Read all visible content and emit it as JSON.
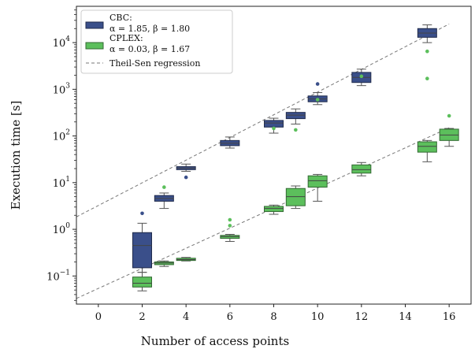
{
  "chart_data": {
    "type": "box",
    "xlabel": "Number of access points",
    "ylabel": "Execution time [s]",
    "yscale": "log",
    "xlim": [
      -1,
      17
    ],
    "ylim": [
      0.025,
      60000
    ],
    "xticks": [
      0,
      2,
      4,
      6,
      8,
      10,
      12,
      14,
      16
    ],
    "yticks": [
      {
        "value": 0.1,
        "base": "10",
        "exp": "−1"
      },
      {
        "value": 1,
        "base": "10",
        "exp": "0"
      },
      {
        "value": 10,
        "base": "10",
        "exp": "1"
      },
      {
        "value": 100,
        "base": "10",
        "exp": "2"
      },
      {
        "value": 1000,
        "base": "10",
        "exp": "3"
      },
      {
        "value": 10000,
        "base": "10",
        "exp": "4"
      }
    ],
    "grid": false,
    "legend": {
      "placement": "top-left",
      "entries": [
        {
          "line1": "CBC:",
          "line2": "α = 1.85, β = 1.80",
          "color": "#3a4f8a",
          "style": "box"
        },
        {
          "line1": "CPLEX:",
          "line2": "α = 0.03, β = 1.67",
          "color": "#5cbf5c",
          "style": "box"
        },
        {
          "line1": "Theil-Sen regression",
          "line2": "",
          "color": "#777777",
          "style": "dashed"
        }
      ]
    },
    "series": [
      {
        "name": "CBC",
        "color": "#3a4f8a",
        "boxes": [
          {
            "x": 2,
            "whislo": 0.12,
            "q1": 0.15,
            "med": 0.45,
            "q3": 0.85,
            "whishi": 1.35,
            "fliers": [
              2.2
            ]
          },
          {
            "x": 3,
            "whislo": 2.8,
            "q1": 4.0,
            "med": 4.6,
            "q3": 5.3,
            "whishi": 6.0,
            "fliers": []
          },
          {
            "x": 4,
            "whislo": 17.5,
            "q1": 19.0,
            "med": 20.5,
            "q3": 22.0,
            "whishi": 25.0,
            "fliers": [
              13.0
            ]
          },
          {
            "x": 6,
            "whislo": 55,
            "q1": 62,
            "med": 70,
            "q3": 80,
            "whishi": 95,
            "fliers": []
          },
          {
            "x": 8,
            "whislo": 115,
            "q1": 155,
            "med": 190,
            "q3": 215,
            "whishi": 240,
            "fliers": []
          },
          {
            "x": 9,
            "whislo": 180,
            "q1": 235,
            "med": 280,
            "q3": 320,
            "whishi": 380,
            "fliers": []
          },
          {
            "x": 10,
            "whislo": 470,
            "q1": 540,
            "med": 620,
            "q3": 720,
            "whishi": 850,
            "fliers": [
              1300
            ]
          },
          {
            "x": 12,
            "whislo": 1200,
            "q1": 1400,
            "med": 1800,
            "q3": 2300,
            "whishi": 2700,
            "fliers": []
          },
          {
            "x": 15,
            "whislo": 10000,
            "q1": 13000,
            "med": 16000,
            "q3": 20000,
            "whishi": 24000,
            "fliers": []
          }
        ],
        "regression": {
          "x": [
            -1,
            16
          ],
          "y": [
            1.85,
            25000
          ]
        }
      },
      {
        "name": "CPLEX",
        "color": "#5cbf5c",
        "boxes": [
          {
            "x": 2,
            "whislo": 0.048,
            "q1": 0.058,
            "med": 0.07,
            "q3": 0.095,
            "whishi": 0.12,
            "fliers": []
          },
          {
            "x": 3,
            "whislo": 0.16,
            "q1": 0.175,
            "med": 0.19,
            "q3": 0.2,
            "whishi": 0.21,
            "fliers": [
              8.0
            ]
          },
          {
            "x": 4,
            "whislo": 0.21,
            "q1": 0.215,
            "med": 0.225,
            "q3": 0.24,
            "whishi": 0.25,
            "fliers": []
          },
          {
            "x": 6,
            "whislo": 0.55,
            "q1": 0.64,
            "med": 0.7,
            "q3": 0.74,
            "whishi": 0.78,
            "fliers": [
              1.2,
              1.6
            ]
          },
          {
            "x": 8,
            "whislo": 2.1,
            "q1": 2.4,
            "med": 2.8,
            "q3": 3.1,
            "whishi": 3.3,
            "fliers": [
              145
            ]
          },
          {
            "x": 9,
            "whislo": 2.8,
            "q1": 3.2,
            "med": 5.0,
            "q3": 7.5,
            "whishi": 8.5,
            "fliers": [
              135
            ]
          },
          {
            "x": 10,
            "whislo": 4.0,
            "q1": 8.0,
            "med": 11.0,
            "q3": 14.0,
            "whishi": 15.0,
            "fliers": [
              600
            ]
          },
          {
            "x": 12,
            "whislo": 14,
            "q1": 16,
            "med": 19,
            "q3": 24,
            "whishi": 27,
            "fliers": [
              1900
            ]
          },
          {
            "x": 15,
            "whislo": 28,
            "q1": 45,
            "med": 60,
            "q3": 75,
            "whishi": 80,
            "fliers": [
              1700,
              6500
            ]
          },
          {
            "x": 16,
            "whislo": 60,
            "q1": 80,
            "med": 105,
            "q3": 140,
            "whishi": 145,
            "fliers": [
              270
            ]
          }
        ],
        "regression": {
          "x": [
            -1,
            16
          ],
          "y": [
            0.033,
            150
          ]
        }
      }
    ]
  }
}
